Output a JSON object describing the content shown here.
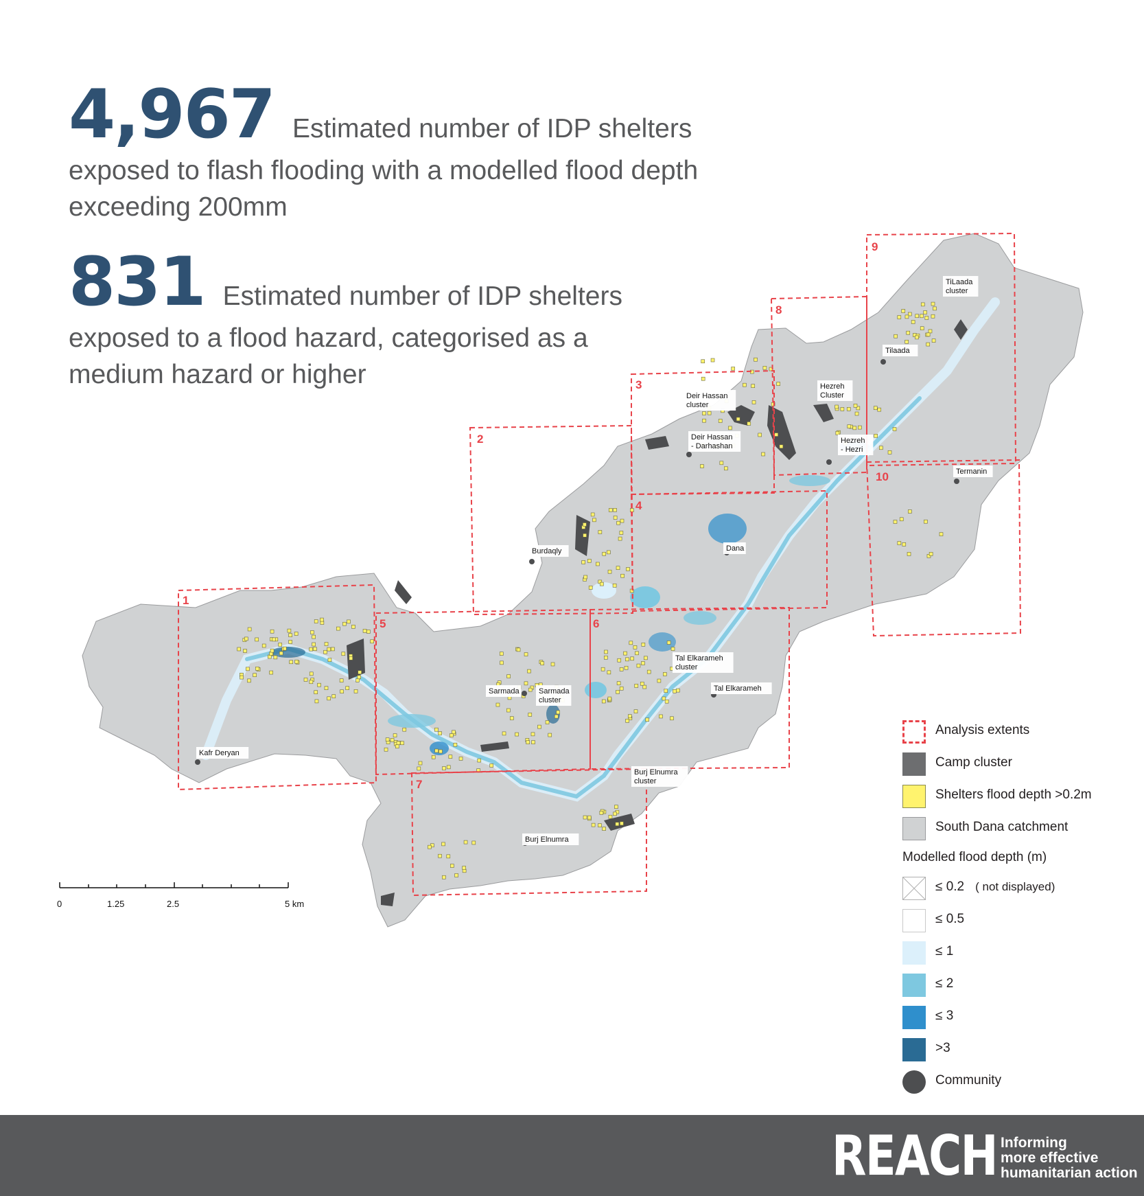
{
  "stats": [
    {
      "number": "4,967",
      "line1": "Estimated number of IDP shelters",
      "rest": [
        "exposed to flash flooding with a modelled flood depth",
        "exceeding 200mm"
      ]
    },
    {
      "number": "831",
      "line1": "Estimated number of IDP shelters",
      "rest": [
        "exposed to a flood hazard, categorised as a",
        "medium hazard or higher"
      ]
    }
  ],
  "map": {
    "places": [
      {
        "name": "TiLaada\ncluster"
      },
      {
        "name": "Tilaada"
      },
      {
        "name": "Hezreh\nCluster"
      },
      {
        "name": "Hezreh\n- Hezri"
      },
      {
        "name": "Deir Hassan\ncluster"
      },
      {
        "name": "Deir Hassan\n- Darhashan"
      },
      {
        "name": "Termanin"
      },
      {
        "name": "Burdaqly"
      },
      {
        "name": "Dana"
      },
      {
        "name": "Tal Elkarameh\ncluster"
      },
      {
        "name": "Tal Elkarameh"
      },
      {
        "name": "Sarmada"
      },
      {
        "name": "Sarmada\ncluster"
      },
      {
        "name": "Kafr Deryan"
      },
      {
        "name": "Burj Elnumra\ncluster"
      },
      {
        "name": "Burj Elnumra"
      }
    ],
    "analysis_extents": [
      "1",
      "2",
      "3",
      "4",
      "5",
      "6",
      "7",
      "8",
      "9",
      "10"
    ],
    "scale_bar": {
      "ticks": [
        "0",
        "1.25",
        "2.5",
        "5 km"
      ]
    }
  },
  "legend": {
    "items": [
      {
        "label": "Analysis extents",
        "style": "extent"
      },
      {
        "label": "Camp cluster",
        "color": "#6d6e70"
      },
      {
        "label": "Shelters flood depth >0.2m",
        "color": "#fff36e"
      },
      {
        "label": "South Dana catchment",
        "color": "#d0d2d3"
      }
    ],
    "depth_heading": "Modelled flood depth (m)",
    "depth_items": [
      {
        "label": "≤ 0.2",
        "note": "( not displayed)",
        "style": "cross"
      },
      {
        "label": "≤ 0.5",
        "color": "#ffffff"
      },
      {
        "label": "≤ 1",
        "color": "#dcf0fb"
      },
      {
        "label": "≤ 2",
        "color": "#7ec8e0"
      },
      {
        "label": "≤ 3",
        "color": "#2f8fcc"
      },
      {
        "label": ">3",
        "color": "#2a6b94"
      }
    ],
    "community": {
      "label": "Community",
      "color": "#4d4e50"
    }
  },
  "footer": {
    "logo": "REACH",
    "tagline": [
      "Informing",
      "more effective",
      "humanitarian action"
    ]
  }
}
